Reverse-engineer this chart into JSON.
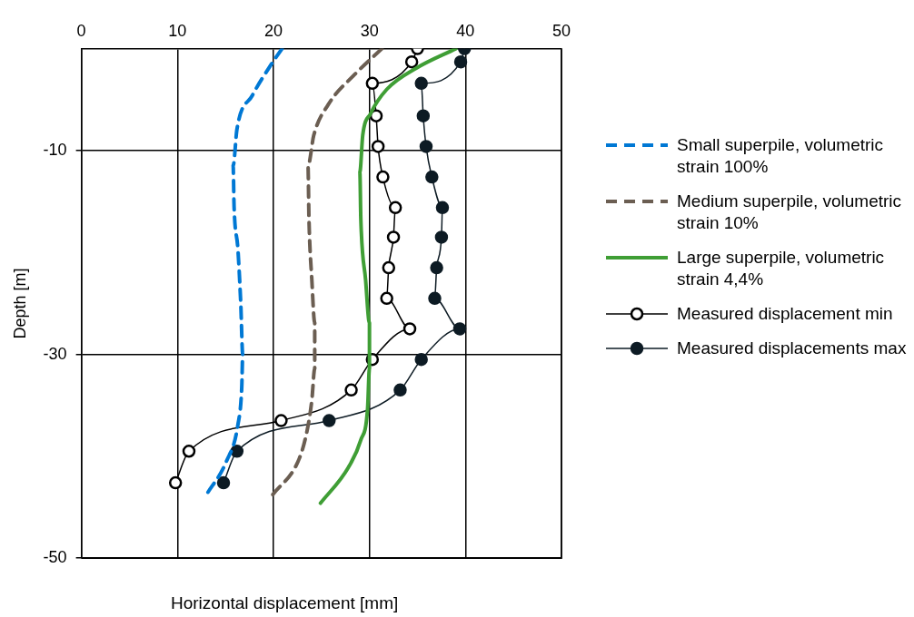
{
  "chart_data": {
    "type": "line",
    "xlabel": "Horizontal displacement [mm]",
    "ylabel": "Depth [m]",
    "xlim": [
      0,
      50
    ],
    "xticks": [
      0,
      10,
      20,
      30,
      40,
      50
    ],
    "ylim": [
      -50,
      0
    ],
    "yticks": [
      -10,
      -30,
      -50
    ],
    "grid": true,
    "legend": "right",
    "series": [
      {
        "name": "Small superpile, volumetric strain 100%",
        "color": "#0078d4",
        "line_style": "dashed",
        "marker": "none",
        "x": [
          20.9,
          19.8,
          17.8,
          16.2,
          15.8,
          15.9,
          16.3,
          16.6,
          16.8,
          16.7,
          16.3,
          15.1,
          13.0
        ],
        "values": [
          0,
          -1.5,
          -4.6,
          -7.9,
          -11.5,
          -15.5,
          -19.7,
          -25.1,
          -30,
          -33.2,
          -36.9,
          -40.5,
          -43.8
        ]
      },
      {
        "name": "Medium superpile, volumetric strain 10%",
        "color": "#6b5e52",
        "line_style": "dashed",
        "marker": "none",
        "x": [
          31.3,
          28.5,
          25.7,
          24.2,
          23.6,
          23.7,
          24.0,
          24.3,
          24.3,
          24.0,
          23.5,
          22.7,
          19.9
        ],
        "values": [
          0,
          -2.5,
          -5.5,
          -8.5,
          -11.5,
          -16.7,
          -22.7,
          -26.9,
          -31.4,
          -34.5,
          -37.5,
          -40.2,
          -43.8
        ]
      },
      {
        "name": "Large superpile, volumetric strain 4,4%",
        "color": "#3f9e35",
        "line_style": "solid",
        "marker": "none",
        "x": [
          39.0,
          34.9,
          31.8,
          30.1,
          29.3,
          29.0,
          29.1,
          29.6,
          30.0,
          30.0,
          29.8,
          29.1,
          27.8,
          24.9
        ],
        "values": [
          0,
          -1.9,
          -4.0,
          -6.4,
          -8.5,
          -12.1,
          -16.7,
          -22.7,
          -26.9,
          -31.4,
          -35.4,
          -38.4,
          -41.1,
          -44.6
        ]
      },
      {
        "name": "Measured displacement min",
        "color": "#000000",
        "line_style": "solid",
        "marker": "circle",
        "x": [
          35,
          34.4,
          30.3,
          30.7,
          30.9,
          31.4,
          32.7,
          32.5,
          32.0,
          31.8,
          34.2,
          30.3,
          28.1,
          20.8,
          11.2,
          9.8
        ],
        "values": [
          0,
          -1.3,
          -3.4,
          -6.6,
          -9.6,
          -12.6,
          -15.6,
          -18.5,
          -21.5,
          -24.5,
          -27.5,
          -30.5,
          -33.5,
          -36.5,
          -39.5,
          -42.6
        ]
      },
      {
        "name": "Measured displacements max",
        "color": "#0d1b24",
        "line_style": "solid",
        "marker": "circle",
        "x": [
          39.9,
          39.5,
          35.4,
          35.6,
          35.9,
          36.5,
          37.6,
          37.5,
          37.0,
          36.8,
          39.4,
          35.4,
          33.2,
          25.8,
          16.2,
          14.8
        ],
        "values": [
          0,
          -1.3,
          -3.4,
          -6.6,
          -9.6,
          -12.6,
          -15.6,
          -18.5,
          -21.5,
          -24.5,
          -27.5,
          -30.5,
          -33.5,
          -36.5,
          -39.5,
          -42.6
        ]
      }
    ]
  }
}
